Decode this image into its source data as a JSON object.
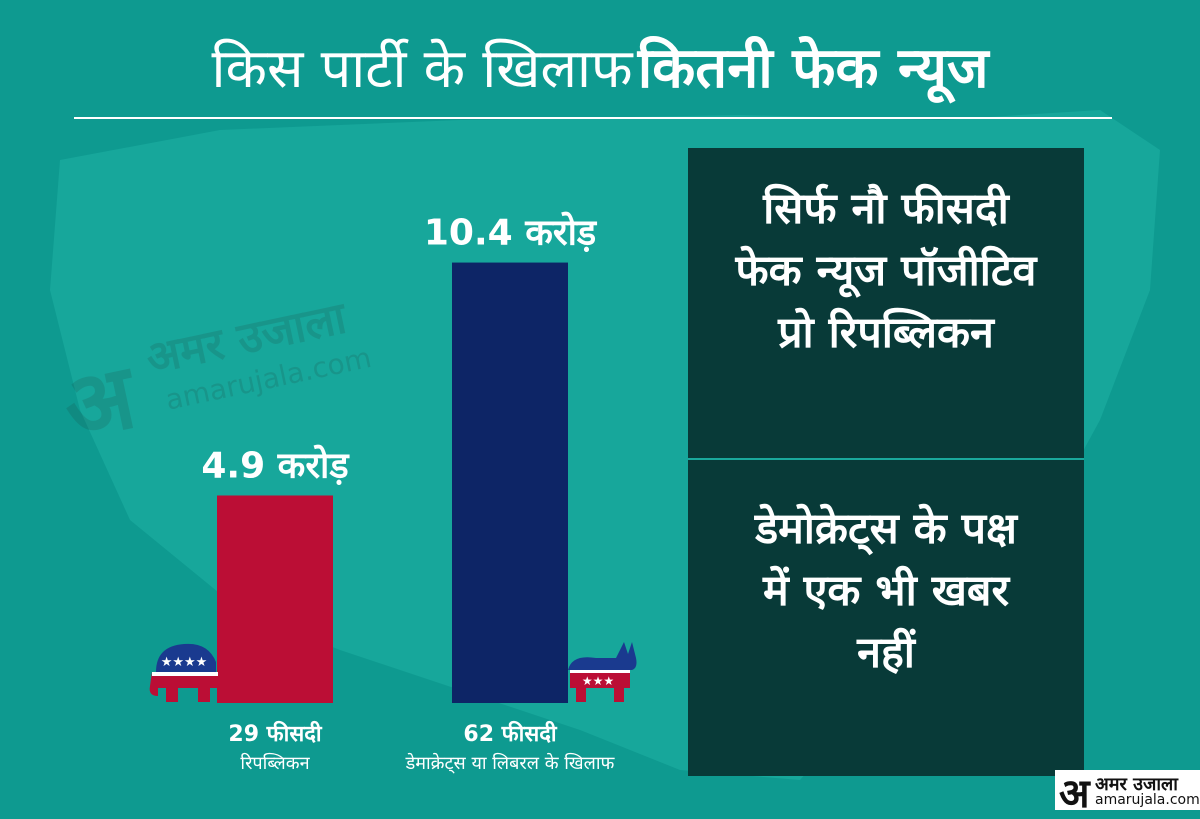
{
  "title": {
    "part1": "किस पार्टी के खिलाफ",
    "part2": "कितनी फेक न्यूज"
  },
  "watermark": {
    "logo_glyph": "अ",
    "name": "अमर उजाला",
    "url": "amarujala.com"
  },
  "chart_data": {
    "type": "bar",
    "categories": [
      "रिपब्लिकन",
      "डेमाक्रेट्स या लिबरल के खिलाफ"
    ],
    "values": [
      4.9,
      10.4
    ],
    "value_labels": [
      "4.9 करोड़",
      "10.4 करोड़"
    ],
    "percent_labels": [
      "29 फीसदी",
      "62 फीसदी"
    ],
    "ylim": [
      0,
      12
    ],
    "colors": [
      "#bb0e35",
      "#0d2566"
    ],
    "icons": [
      "republican-elephant-icon",
      "democrat-donkey-icon"
    ],
    "grid": false
  },
  "info_box": {
    "block1": [
      "सिर्फ नौ फीसदी",
      "फेक न्यूज पॉजीटिव",
      "प्रो रिपब्लिकन"
    ],
    "block2": [
      "डेमोक्रेट्स के पक्ष",
      "में एक भी खबर",
      "नहीं"
    ]
  },
  "logo": {
    "glyph": "अ",
    "name": "अमर उजाला",
    "url": "amarujala.com"
  },
  "colors": {
    "background": "#0e9a90",
    "info_box": "#083a38",
    "republican": "#bb0e35",
    "democrat": "#0d2566"
  }
}
